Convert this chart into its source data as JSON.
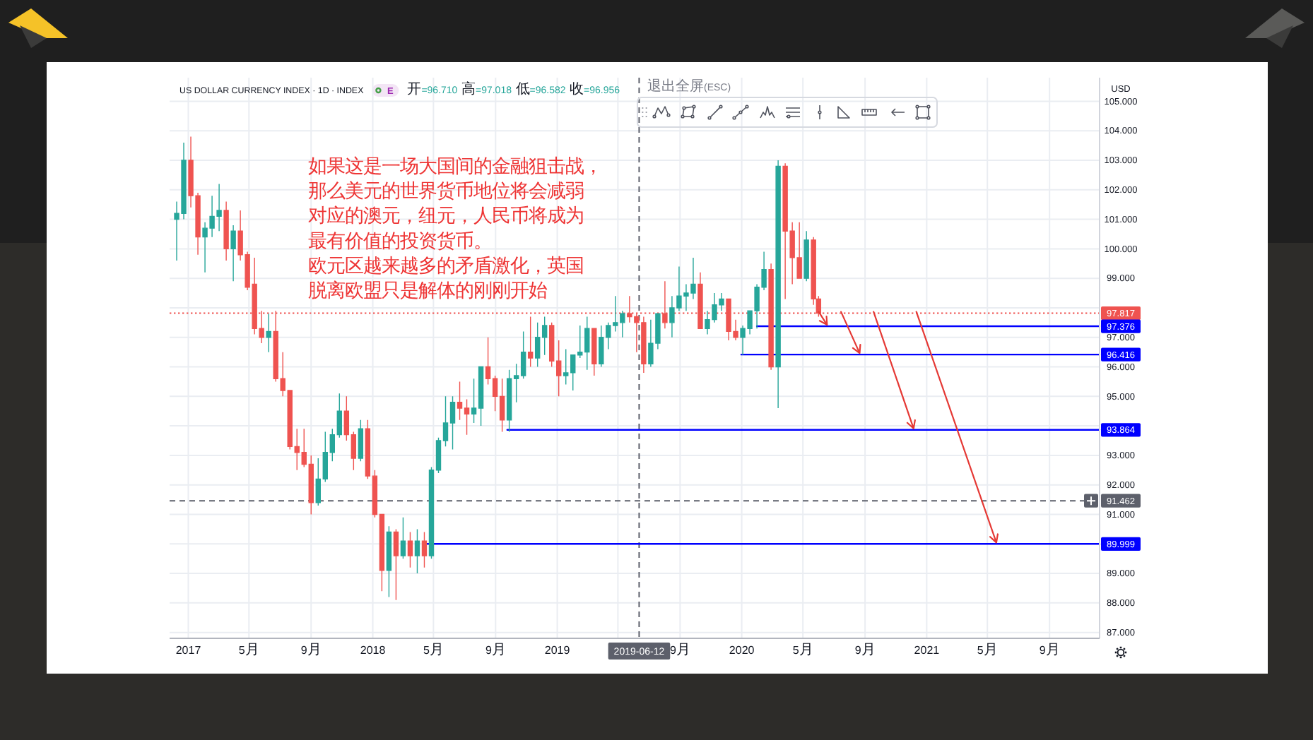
{
  "chart_data": {
    "type": "candlestick",
    "title": "US DOLLAR CURRENCY INDEX · 1D · INDEX",
    "subtitle": "开=96.710 高=97.018 低=96.582 收=96.956",
    "ylabel": "USD",
    "annotations": [
      "如果这是一场大国间的金融狙击战，那么美元的世界货币地位将会减弱对应的澳元，纽元，人民币将成为最有价值的投资货币。",
      "欧元区越来越多的矛盾激化，英国脱离欧盟只是解体的刚刚开始",
      "E",
      "退出全屏(ESC)"
    ],
    "x": [
      "2016-12-09",
      "2016-12-23",
      "2017-01-06",
      "2017-01-20",
      "2017-02-03",
      "2017-02-17",
      "2017-03-03",
      "2017-03-17",
      "2017-03-31",
      "2017-04-14",
      "2017-04-28",
      "2017-05-12",
      "2017-05-26",
      "2017-06-09",
      "2017-06-23",
      "2017-07-07",
      "2017-07-21",
      "2017-08-04",
      "2017-08-18",
      "2017-09-01",
      "2017-09-15",
      "2017-09-29",
      "2017-10-13",
      "2017-10-27",
      "2017-11-10",
      "2017-11-24",
      "2017-12-08",
      "2017-12-22",
      "2018-01-05",
      "2018-01-19",
      "2018-02-02",
      "2018-02-16",
      "2018-03-02",
      "2018-03-16",
      "2018-03-30",
      "2018-04-13",
      "2018-04-27",
      "2018-05-11",
      "2018-05-25",
      "2018-06-08",
      "2018-06-22",
      "2018-07-06",
      "2018-07-20",
      "2018-08-03",
      "2018-08-17",
      "2018-08-31",
      "2018-09-14",
      "2018-09-28",
      "2018-10-12",
      "2018-10-26",
      "2018-11-09",
      "2018-11-23",
      "2018-12-07",
      "2018-12-21",
      "2019-01-04",
      "2019-01-18",
      "2019-02-01",
      "2019-02-15",
      "2019-03-01",
      "2019-03-15",
      "2019-03-29",
      "2019-04-12",
      "2019-04-26",
      "2019-05-10",
      "2019-05-24",
      "2019-06-07",
      "2019-06-21",
      "2019-07-05",
      "2019-07-19",
      "2019-08-02",
      "2019-08-16",
      "2019-08-30",
      "2019-09-13",
      "2019-09-27",
      "2019-10-11",
      "2019-10-25",
      "2019-11-08",
      "2019-11-22",
      "2019-12-06",
      "2019-12-20",
      "2020-01-03",
      "2020-01-17",
      "2020-01-31",
      "2020-02-14",
      "2020-02-28",
      "2020-03-13",
      "2020-03-27",
      "2020-04-10",
      "2020-04-24",
      "2020-05-08",
      "2020-05-22",
      "2020-06-01"
    ],
    "ohlc": [
      [
        101.0,
        101.6,
        99.6,
        101.2
      ],
      [
        101.2,
        103.6,
        101.0,
        103.0
      ],
      [
        103.0,
        103.8,
        101.4,
        101.8
      ],
      [
        101.8,
        101.9,
        99.8,
        100.4
      ],
      [
        100.4,
        100.9,
        99.2,
        100.7
      ],
      [
        100.7,
        101.8,
        100.4,
        101.1
      ],
      [
        101.1,
        102.2,
        100.6,
        101.3
      ],
      [
        101.3,
        101.6,
        99.6,
        100.0
      ],
      [
        100.0,
        100.8,
        98.9,
        100.6
      ],
      [
        100.6,
        101.3,
        99.6,
        99.8
      ],
      [
        99.8,
        99.9,
        98.6,
        98.7
      ],
      [
        98.8,
        99.7,
        97.1,
        97.3
      ],
      [
        97.3,
        97.9,
        96.8,
        97.0
      ],
      [
        97.0,
        97.8,
        96.5,
        97.2
      ],
      [
        97.2,
        97.9,
        95.5,
        95.6
      ],
      [
        95.6,
        96.5,
        95.0,
        95.2
      ],
      [
        95.2,
        95.2,
        93.2,
        93.3
      ],
      [
        93.3,
        93.9,
        92.5,
        93.1
      ],
      [
        93.1,
        93.9,
        92.6,
        92.7
      ],
      [
        92.7,
        93.0,
        91.0,
        91.4
      ],
      [
        91.4,
        92.9,
        91.3,
        92.2
      ],
      [
        92.2,
        93.8,
        92.1,
        93.1
      ],
      [
        93.1,
        93.9,
        92.8,
        93.7
      ],
      [
        93.7,
        95.1,
        93.6,
        94.5
      ],
      [
        94.5,
        95.0,
        93.5,
        93.7
      ],
      [
        93.7,
        93.8,
        92.5,
        92.9
      ],
      [
        92.9,
        94.2,
        92.8,
        93.9
      ],
      [
        93.9,
        94.2,
        92.2,
        92.3
      ],
      [
        92.3,
        92.5,
        90.9,
        91.0
      ],
      [
        91.0,
        91.0,
        88.4,
        89.1
      ],
      [
        89.1,
        90.6,
        88.2,
        90.4
      ],
      [
        90.4,
        90.5,
        88.1,
        89.6
      ],
      [
        89.6,
        90.9,
        89.5,
        90.1
      ],
      [
        90.1,
        90.4,
        89.2,
        89.6
      ],
      [
        89.6,
        90.5,
        89.0,
        90.1
      ],
      [
        90.1,
        90.4,
        89.2,
        89.6
      ],
      [
        89.6,
        92.6,
        89.5,
        92.5
      ],
      [
        92.5,
        93.6,
        92.4,
        93.5
      ],
      [
        93.5,
        95.0,
        93.3,
        94.1
      ],
      [
        94.1,
        95.0,
        93.2,
        94.8
      ],
      [
        94.8,
        95.5,
        94.2,
        94.6
      ],
      [
        94.6,
        94.9,
        93.7,
        94.4
      ],
      [
        94.4,
        95.6,
        94.1,
        94.6
      ],
      [
        94.6,
        96.0,
        94.0,
        96.0
      ],
      [
        96.0,
        97.0,
        95.4,
        95.6
      ],
      [
        95.6,
        95.7,
        94.5,
        95.0
      ],
      [
        95.0,
        95.6,
        93.8,
        94.2
      ],
      [
        94.2,
        95.9,
        93.8,
        95.6
      ],
      [
        95.6,
        96.1,
        94.8,
        95.7
      ],
      [
        95.7,
        97.2,
        95.6,
        96.5
      ],
      [
        96.5,
        97.7,
        96.0,
        96.3
      ],
      [
        96.3,
        97.5,
        96.0,
        97.0
      ],
      [
        97.0,
        97.7,
        96.4,
        97.4
      ],
      [
        97.4,
        97.5,
        96.0,
        96.2
      ],
      [
        96.2,
        96.9,
        95.0,
        95.7
      ],
      [
        95.7,
        96.6,
        95.4,
        95.8
      ],
      [
        95.8,
        96.4,
        95.2,
        96.4
      ],
      [
        96.4,
        97.4,
        96.3,
        96.5
      ],
      [
        96.5,
        97.7,
        95.9,
        97.3
      ],
      [
        97.3,
        97.3,
        95.7,
        96.1
      ],
      [
        96.1,
        97.4,
        96.0,
        97.0
      ],
      [
        97.0,
        97.5,
        96.6,
        97.4
      ],
      [
        97.4,
        98.4,
        97.2,
        97.5
      ],
      [
        97.5,
        97.9,
        97.0,
        97.8
      ],
      [
        97.8,
        98.4,
        97.5,
        97.7
      ],
      [
        97.7,
        97.8,
        96.5,
        97.5
      ],
      [
        97.5,
        97.7,
        95.8,
        96.1
      ],
      [
        96.1,
        97.6,
        96.0,
        96.8
      ],
      [
        96.8,
        97.8,
        96.6,
        97.8
      ],
      [
        97.8,
        98.9,
        97.3,
        97.5
      ],
      [
        97.5,
        98.4,
        97.0,
        98.0
      ],
      [
        98.0,
        99.4,
        97.9,
        98.4
      ],
      [
        98.4,
        98.8,
        97.9,
        98.5
      ],
      [
        98.5,
        99.7,
        98.3,
        98.8
      ],
      [
        98.8,
        99.2,
        97.3,
        97.3
      ],
      [
        97.3,
        97.9,
        97.1,
        97.6
      ],
      [
        97.6,
        98.5,
        97.5,
        98.1
      ],
      [
        98.1,
        98.5,
        97.9,
        98.3
      ],
      [
        98.3,
        98.3,
        96.9,
        97.2
      ],
      [
        97.2,
        97.6,
        96.9,
        97.0
      ],
      [
        97.0,
        97.4,
        96.4,
        97.3
      ],
      [
        97.3,
        97.9,
        97.1,
        97.9
      ],
      [
        97.9,
        98.8,
        97.3,
        98.7
      ],
      [
        98.7,
        99.9,
        98.6,
        99.3
      ],
      [
        99.3,
        99.5,
        95.9,
        96.0
      ],
      [
        96.0,
        103.0,
        94.6,
        102.8
      ],
      [
        102.8,
        102.9,
        98.3,
        100.6
      ],
      [
        100.6,
        100.9,
        98.8,
        99.7
      ],
      [
        99.7,
        100.9,
        99.0,
        99.0
      ],
      [
        99.0,
        100.6,
        98.9,
        100.3
      ],
      [
        100.3,
        100.4,
        98.1,
        98.3
      ],
      [
        98.3,
        98.4,
        97.7,
        97.817
      ]
    ],
    "colors": [
      "#26a69a",
      "#26a69a",
      "#ef5350",
      "#ef5350",
      "#26a69a",
      "#26a69a",
      "#26a69a",
      "#ef5350",
      "#26a69a",
      "#ef5350",
      "#ef5350",
      "#ef5350",
      "#ef5350",
      "#26a69a",
      "#ef5350",
      "#ef5350",
      "#ef5350",
      "#ef5350",
      "#ef5350",
      "#ef5350",
      "#26a69a",
      "#26a69a",
      "#26a69a",
      "#26a69a",
      "#ef5350",
      "#ef5350",
      "#26a69a",
      "#ef5350",
      "#ef5350",
      "#ef5350",
      "#26a69a",
      "#ef5350",
      "#26a69a",
      "#ef5350",
      "#26a69a",
      "#ef5350",
      "#26a69a",
      "#26a69a",
      "#26a69a",
      "#26a69a",
      "#ef5350",
      "#ef5350",
      "#26a69a",
      "#26a69a",
      "#ef5350",
      "#ef5350",
      "#ef5350",
      "#26a69a",
      "#26a69a",
      "#26a69a",
      "#ef5350",
      "#26a69a",
      "#26a69a",
      "#ef5350",
      "#ef5350",
      "#26a69a",
      "#26a69a",
      "#26a69a",
      "#26a69a",
      "#ef5350",
      "#26a69a",
      "#26a69a",
      "#26a69a",
      "#26a69a",
      "#ef5350",
      "#ef5350",
      "#ef5350",
      "#26a69a",
      "#26a69a",
      "#ef5350",
      "#26a69a",
      "#26a69a",
      "#26a69a",
      "#26a69a",
      "#ef5350",
      "#26a69a",
      "#26a69a",
      "#26a69a",
      "#ef5350",
      "#ef5350",
      "#26a69a",
      "#26a69a",
      "#26a69a",
      "#26a69a",
      "#ef5350",
      "#26a69a",
      "#ef5350",
      "#ef5350",
      "#ef5350",
      "#26a69a",
      "#ef5350",
      "#ef5350"
    ],
    "series": [
      {
        "type": "line",
        "color": "#0000ff",
        "x": [
          "2020-01-31",
          "2021-12-09"
        ],
        "values": [
          97.376,
          97.376
        ],
        "value_labels": [
          null,
          "97.376"
        ]
      },
      {
        "type": "line",
        "color": "#0000ff",
        "x": [
          "2019-12-31",
          "2021-12-09"
        ],
        "values": [
          96.416,
          96.416
        ],
        "value_labels": [
          null,
          "96.416"
        ]
      },
      {
        "type": "line",
        "color": "#0000ff",
        "x": [
          "2018-09-24",
          "2021-12-09"
        ],
        "values": [
          93.864,
          93.864
        ],
        "value_labels": [
          null,
          "93.864"
        ]
      },
      {
        "type": "line",
        "color": "#0000ff",
        "x": [
          "2018-04-18",
          "2021-12-09"
        ],
        "values": [
          89.999,
          89.999
        ],
        "value_labels": [
          null,
          "89.999"
        ]
      }
    ],
    "ref_lines": [
      {
        "axis": "y",
        "value": 97.817,
        "label": "97.817",
        "color": "#ef5350",
        "line_style": "dotted"
      },
      {
        "axis": "y",
        "value": 91.462,
        "label": "91.462",
        "color": "#5d606b",
        "line_style": "dashed"
      },
      {
        "axis": "x",
        "value": "2019-06-12",
        "label": "2019-06-12",
        "color": "#5d606b",
        "line_style": "dashed"
      }
    ],
    "xlim": [
      "2016-11-25",
      "2021-12-09"
    ],
    "xticks": [
      {
        "value": "2017-01-01",
        "label": "2017"
      },
      {
        "value": "2017-05-01",
        "label": "5月"
      },
      {
        "value": "2017-09-01",
        "label": "9月"
      },
      {
        "value": "2018-01-01",
        "label": "2018"
      },
      {
        "value": "2018-05-01",
        "label": "5月"
      },
      {
        "value": "2018-09-01",
        "label": "9月"
      },
      {
        "value": "2019-01-01",
        "label": "2019"
      },
      {
        "value": "2019-05-01",
        "label": null
      },
      {
        "value": "2019-09-01",
        "label": "9月"
      },
      {
        "value": "2020-01-01",
        "label": "2020"
      },
      {
        "value": "2020-05-01",
        "label": "5月"
      },
      {
        "value": "2020-09-01",
        "label": "9月"
      },
      {
        "value": "2021-01-01",
        "label": "2021"
      },
      {
        "value": "2021-05-01",
        "label": "5月"
      },
      {
        "value": "2021-09-01",
        "label": "9月"
      }
    ],
    "ylim": [
      86.8,
      105.8
    ],
    "yticks": [
      {
        "value": 87,
        "label": "87.000"
      },
      {
        "value": 88,
        "label": "88.000"
      },
      {
        "value": 89,
        "label": "89.000"
      },
      {
        "value": 90,
        "label": null
      },
      {
        "value": 91,
        "label": "91.000"
      },
      {
        "value": 92,
        "label": "92.000"
      },
      {
        "value": 93,
        "label": "93.000"
      },
      {
        "value": 94,
        "label": null
      },
      {
        "value": 95,
        "label": "95.000"
      },
      {
        "value": 96,
        "label": "96.000"
      },
      {
        "value": 97,
        "label": "97.000"
      },
      {
        "value": 98,
        "label": null
      },
      {
        "value": 99,
        "label": "99.000"
      },
      {
        "value": 100,
        "label": "100.000"
      },
      {
        "value": 101,
        "label": "101.000"
      },
      {
        "value": 102,
        "label": "102.000"
      },
      {
        "value": 103,
        "label": "103.000"
      },
      {
        "value": 104,
        "label": "104.000"
      },
      {
        "value": 105,
        "label": "105.000"
      }
    ],
    "grid": true
  }
}
